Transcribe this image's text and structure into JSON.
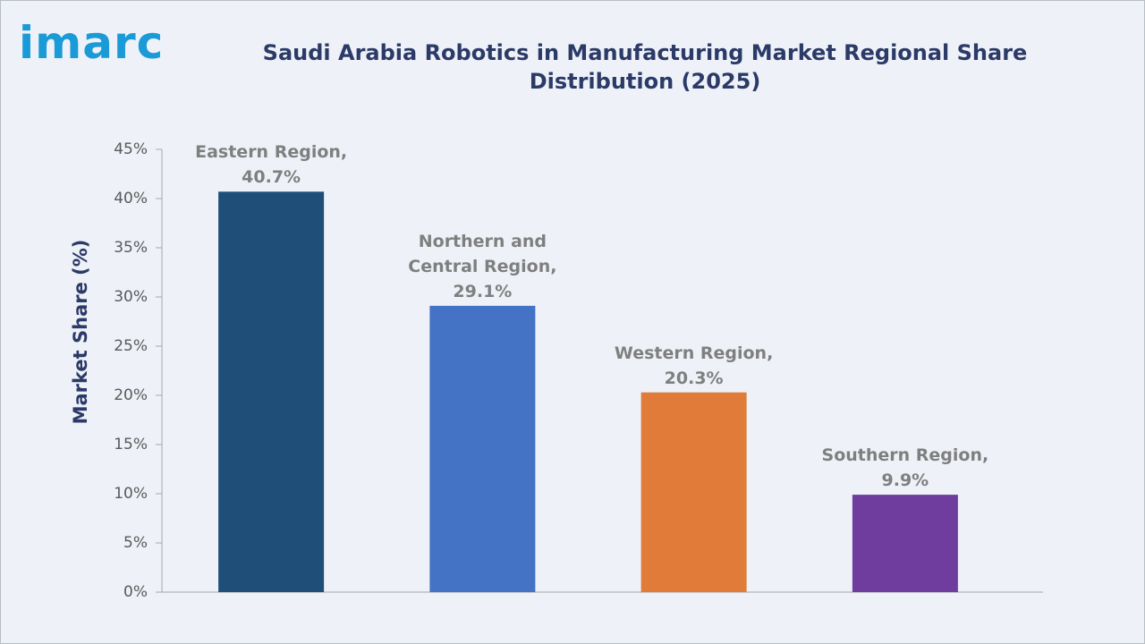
{
  "logo": "imarc",
  "chart_data": {
    "type": "bar",
    "title": "Saudi Arabia Robotics in Manufacturing Market Regional Share Distribution (2025)",
    "y_label": "Market Share (%)",
    "categories": [
      "Eastern Region,",
      "Northern and Central Region,",
      "Western Region,",
      "Southern Region,"
    ],
    "values": [
      40.7,
      29.1,
      20.3,
      9.9
    ],
    "value_labels": [
      "40.7%",
      "29.1%",
      "20.3%",
      "9.9%"
    ],
    "colors": [
      "#1f4e79",
      "#4472c4",
      "#e07b39",
      "#6f3d9e"
    ],
    "ylim": [
      0,
      45
    ],
    "yticks": [
      {
        "value": 0,
        "label": "0%"
      },
      {
        "value": 5,
        "label": "5%"
      },
      {
        "value": 10,
        "label": "10%"
      },
      {
        "value": 15,
        "label": "15%"
      },
      {
        "value": 20,
        "label": "20%"
      },
      {
        "value": 25,
        "label": "25%"
      },
      {
        "value": 30,
        "label": "30%"
      },
      {
        "value": 35,
        "label": "35%"
      },
      {
        "value": 40,
        "label": "40%"
      },
      {
        "value": 45,
        "label": "45%"
      }
    ],
    "grid": false
  }
}
